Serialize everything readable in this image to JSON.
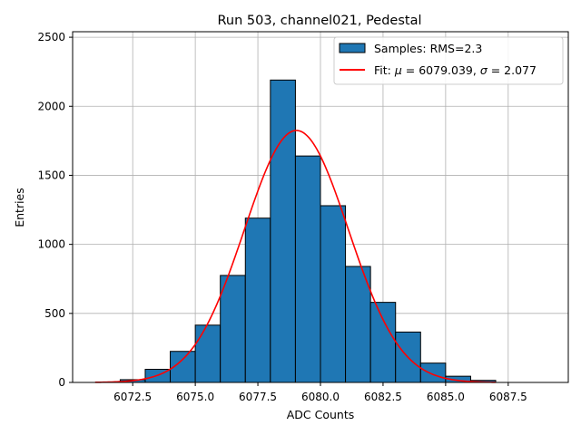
{
  "chart_data": {
    "type": "bar",
    "title": "Run 503, channel021, Pedestal",
    "xlabel": "ADC Counts",
    "ylabel": "Entries",
    "xlim": [
      6070.1,
      6089.9
    ],
    "ylim": [
      0,
      2540
    ],
    "xticks": [
      6072.5,
      6075.0,
      6077.5,
      6080.0,
      6082.5,
      6085.0,
      6087.5
    ],
    "xtick_labels": [
      "6072.5",
      "6075.0",
      "6077.5",
      "6080.0",
      "6082.5",
      "6085.0",
      "6087.5"
    ],
    "yticks": [
      0,
      500,
      1000,
      1500,
      2000,
      2500
    ],
    "ytick_labels": [
      "0",
      "500",
      "1000",
      "1500",
      "2000",
      "2500"
    ],
    "grid": true,
    "legend_position": "top-right",
    "bins": [
      {
        "x0": 6072,
        "x1": 6073,
        "count": 20
      },
      {
        "x0": 6073,
        "x1": 6074,
        "count": 95
      },
      {
        "x0": 6074,
        "x1": 6075,
        "count": 225
      },
      {
        "x0": 6075,
        "x1": 6076,
        "count": 415
      },
      {
        "x0": 6076,
        "x1": 6077,
        "count": 775
      },
      {
        "x0": 6077,
        "x1": 6078,
        "count": 1190
      },
      {
        "x0": 6078,
        "x1": 6079,
        "count": 2190
      },
      {
        "x0": 6079,
        "x1": 6080,
        "count": 1640
      },
      {
        "x0": 6080,
        "x1": 6081,
        "count": 1280
      },
      {
        "x0": 6081,
        "x1": 6082,
        "count": 840
      },
      {
        "x0": 6082,
        "x1": 6083,
        "count": 580
      },
      {
        "x0": 6083,
        "x1": 6084,
        "count": 365
      },
      {
        "x0": 6084,
        "x1": 6085,
        "count": 140
      },
      {
        "x0": 6085,
        "x1": 6086,
        "count": 45
      },
      {
        "x0": 6086,
        "x1": 6087,
        "count": 15
      }
    ],
    "series": [
      {
        "name": "Samples: RMS=2.3",
        "kind": "histogram",
        "color": "#1f77b4",
        "edge_color": "#000000"
      },
      {
        "name": "Fit: μ = 6079.039, σ = 2.077",
        "kind": "gaussian-fit",
        "color": "#ff0000",
        "mu": 6079.039,
        "sigma": 2.077,
        "amplitude": 1825,
        "x_range": [
          6071,
          6087
        ]
      }
    ],
    "legend": {
      "entries": [
        {
          "name": "Samples: RMS=2.3"
        },
        {
          "name_prefix": "Fit: ",
          "sym1": "μ",
          "eq1": " = 6079.039, ",
          "sym2": "σ",
          "eq2": " = 2.077"
        }
      ]
    }
  }
}
